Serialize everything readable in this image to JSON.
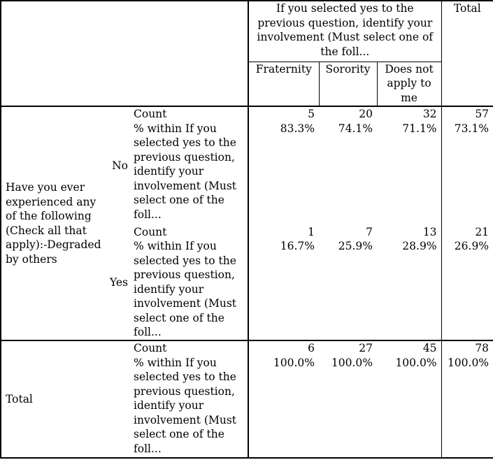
{
  "header": {
    "group_title": "If you selected yes to the previous question, identify your involvement (Must select one of the foll...",
    "total_label": "Total",
    "columns": [
      "Fraternity",
      "Sorority",
      "Does not apply to me"
    ]
  },
  "row_variable": "Have you ever experienced any of the following (Check all that apply):-Degraded by others",
  "stat_labels": {
    "count": "Count",
    "pct": "% within If you selected yes to the previous question, identify your involvement (Must select one of the foll..."
  },
  "rows": [
    {
      "category": "No",
      "count": [
        "5",
        "20",
        "32",
        "57"
      ],
      "pct": [
        "83.3%",
        "74.1%",
        "71.1%",
        "73.1%"
      ]
    },
    {
      "category": "Yes",
      "count": [
        "1",
        "7",
        "13",
        "21"
      ],
      "pct": [
        "16.7%",
        "25.9%",
        "28.9%",
        "26.9%"
      ]
    }
  ],
  "total_row": {
    "label": "Total",
    "count": [
      "6",
      "27",
      "45",
      "78"
    ],
    "pct": [
      "100.0%",
      "100.0%",
      "100.0%",
      "100.0%"
    ]
  }
}
